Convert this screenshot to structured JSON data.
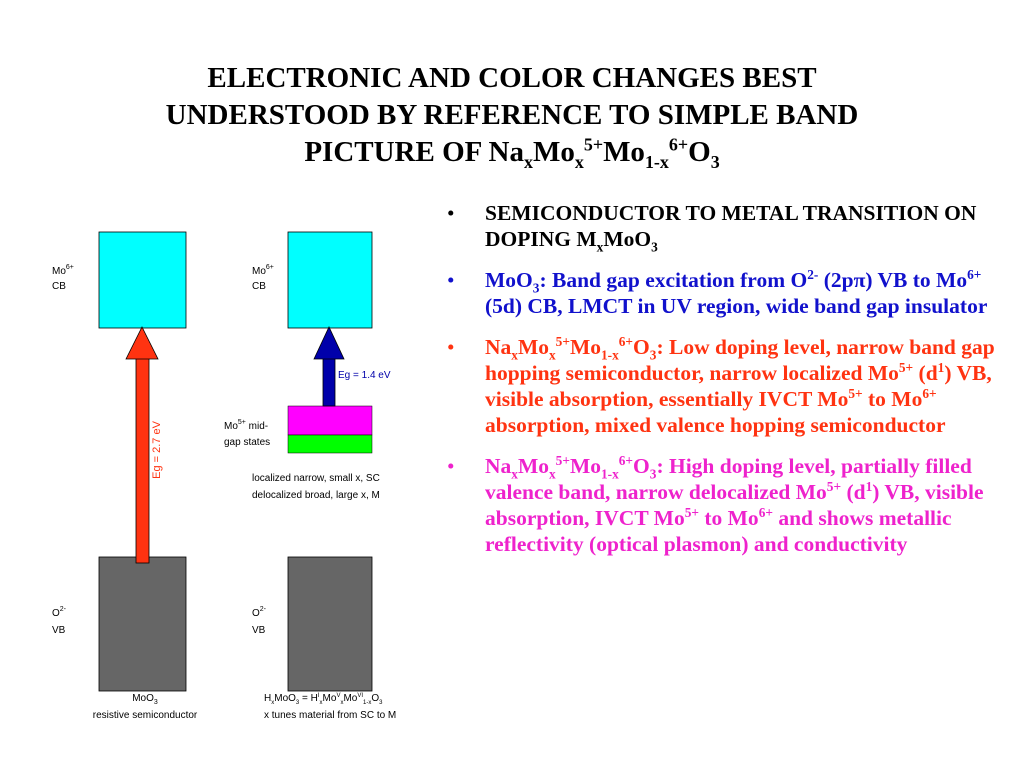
{
  "colors": {
    "cb": "#00ffff",
    "vb": "#666666",
    "arrow_red": "#ff3311",
    "arrow_blue": "#0000aa",
    "midgap_magenta": "#ff00ff",
    "midgap_green": "#00ff00",
    "bullet_blue": "#1111cc",
    "bullet_red": "#ff3311",
    "bullet_magenta": "#ee22cc"
  },
  "title": {
    "line1": "ELECTRONIC AND COLOR CHANGES BEST",
    "line2": "UNDERSTOOD BY REFERENCE TO SIMPLE BAND",
    "line3_a": "PICTURE OF Na",
    "line3_b": "x",
    "line3_c": "Mo",
    "line3_d": "x",
    "line3_e": "5+",
    "line3_f": "Mo",
    "line3_g": "1-x",
    "line3_h": "6+",
    "line3_i": "O",
    "line3_j": "3"
  },
  "diagram": {
    "left": {
      "cb_label_mo": "Mo",
      "cb_label_sup": "6+",
      "cb_label_cb": "CB",
      "vb_label_o": "O",
      "vb_label_sup": "2-",
      "vb_label_vb": "VB",
      "gap_label": "Eg = 2.7 eV",
      "caption1": "MoO",
      "caption1_sub": "3",
      "caption2": "resistive semiconductor"
    },
    "right": {
      "cb_label_mo": "Mo",
      "cb_label_sup": "6+",
      "cb_label_cb": "CB",
      "vb_label_o": "O",
      "vb_label_sup": "2-",
      "vb_label_vb": "VB",
      "gap_label": "Eg = 1.4 eV",
      "midgap_label1_mo": "Mo",
      "midgap_label1_sup": "5+",
      "midgap_label1_rest": "  mid-",
      "midgap_label2": "gap states",
      "note1": "localized narrow, small x, SC",
      "note2": "delocalized broad, large x, M",
      "caption1_h": "H",
      "caption1_x1": "x",
      "caption1_mid": "MoO",
      "caption1_3": "3",
      "caption1_eq": " = H",
      "caption1_I": "I",
      "caption1_x2": "x",
      "caption1_mo": "Mo",
      "caption1_V": "V",
      "caption1_x3": "x",
      "caption1_mo2": "Mo",
      "caption1_VI": "VI",
      "caption1_1x": "1-x",
      "caption1_O": "O",
      "caption1_3b": "3",
      "caption2": "x tunes material from SC to M"
    }
  },
  "bullets": {
    "marker": "•",
    "b1": {
      "t1": "SEMICONDUCTOR TO METAL TRANSITION ON DOPING M",
      "s1": "x",
      "t2": "MoO",
      "s2": "3"
    },
    "b2": {
      "t1": "MoO",
      "s1": "3",
      "t2": ": Band gap excitation from O",
      "p1": "2-",
      "t3": " (2p",
      "pi": "π",
      "t4": ") VB to Mo",
      "p2": "6+",
      "t5": " (5d) CB, LMCT in UV region, wide band gap insulator"
    },
    "b3": {
      "t1": "Na",
      "s1": "x",
      "t2": "Mo",
      "s2": "x",
      "p1": "5+",
      "t3": "Mo",
      "s3": "1-x",
      "p2": "6+",
      "t4": "O",
      "s4": "3",
      "t5": ": Low doping level, narrow band gap hopping semiconductor, narrow localized Mo",
      "p3": "5+",
      "t6": " (d",
      "p4": "1",
      "t7": ") VB, visible absorption, essentially IVCT Mo",
      "p5": "5+",
      "t8": " to Mo",
      "p6": "6+",
      "t9": " absorption, mixed valence hopping semiconductor"
    },
    "b4": {
      "t1": "Na",
      "s1": "x",
      "t2": "Mo",
      "s2": "x",
      "p1": "5+",
      "t3": "Mo",
      "s3": "1-x",
      "p2": "6+",
      "t4": "O",
      "s4": "3",
      "t5": ": High doping level, partially filled valence band, narrow delocalized Mo",
      "p3": "5+",
      "t6": " (d",
      "p4": "1",
      "t7": ") VB, visible absorption, IVCT Mo",
      "p5": "5+",
      "t8": "  to Mo",
      "p6": "6+",
      "t9": "  and shows metallic reflectivity (optical plasmon) and conductivity"
    }
  }
}
